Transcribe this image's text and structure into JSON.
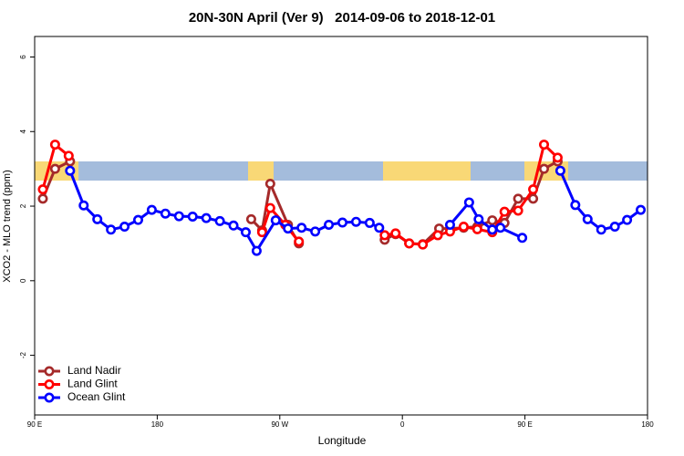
{
  "chart_data": {
    "type": "line",
    "title": "20N-30N April (Ver 9)   2014-09-06 to 2018-12-01",
    "xlabel": "Longitude",
    "ylabel": "XCO2 - MLO trend (ppm)",
    "xlim": [
      90,
      540
    ],
    "ylim": [
      -3.6,
      6.55
    ],
    "xticks": [
      {
        "value": 90,
        "label": "90 E"
      },
      180,
      {
        "value": 270,
        "label": "90 W"
      },
      {
        "value": 360,
        "label": "0"
      },
      {
        "value": 450,
        "label": "90 E"
      },
      {
        "value": 540,
        "label": "180"
      }
    ],
    "yticks": [
      -2,
      0,
      2,
      4,
      6
    ],
    "legend": "bottom-left",
    "series": [
      {
        "name": "Land Nadir",
        "color": "#a52a2a",
        "x": [
          96,
          105,
          116,
          null,
          249,
          257,
          263,
          276,
          284,
          null,
          347,
          355,
          365,
          375,
          387,
          395,
          405,
          415,
          426,
          435,
          445,
          456,
          464,
          474
        ],
        "values": [
          2.2,
          3.0,
          3.2,
          null,
          1.65,
          1.35,
          2.6,
          1.5,
          1.0,
          null,
          1.1,
          1.25,
          1.0,
          0.98,
          1.4,
          1.4,
          1.42,
          1.45,
          1.62,
          1.55,
          2.2,
          2.2,
          3.0,
          3.2
        ]
      },
      {
        "name": "Land Glint",
        "color": "#ff0000",
        "x": [
          96,
          105,
          115,
          null,
          257,
          263,
          274,
          284,
          null,
          347,
          355,
          365,
          375,
          386,
          395,
          405,
          415,
          426,
          435,
          445,
          456,
          464,
          474
        ],
        "values": [
          2.45,
          3.65,
          3.35,
          null,
          1.3,
          1.95,
          1.5,
          1.05,
          null,
          1.22,
          1.27,
          1.0,
          0.97,
          1.22,
          1.32,
          1.45,
          1.38,
          1.3,
          1.85,
          1.88,
          2.45,
          3.65,
          3.3
        ]
      },
      {
        "name": "Ocean Glint",
        "color": "#0000ff",
        "x": [
          116,
          126,
          136,
          146,
          156,
          166,
          176,
          186,
          196,
          206,
          216,
          226,
          236,
          245,
          253,
          267,
          276,
          286,
          296,
          306,
          316,
          326,
          336,
          343,
          null,
          395,
          409,
          416,
          426,
          432,
          448,
          null,
          476,
          487,
          496,
          506,
          516,
          525,
          535
        ],
        "values": [
          2.95,
          2.02,
          1.65,
          1.37,
          1.45,
          1.63,
          1.9,
          1.8,
          1.73,
          1.72,
          1.68,
          1.6,
          1.48,
          1.3,
          0.8,
          1.62,
          1.4,
          1.42,
          1.32,
          1.5,
          1.56,
          1.58,
          1.55,
          1.42,
          null,
          1.5,
          2.1,
          1.65,
          1.37,
          1.42,
          1.15,
          null,
          2.95,
          2.03,
          1.65,
          1.37,
          1.45,
          1.63,
          1.9
        ]
      }
    ]
  }
}
